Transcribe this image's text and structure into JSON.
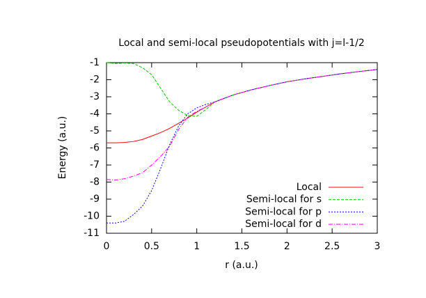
{
  "chart_data": {
    "type": "line",
    "title": "Local and semi-local pseudopotentials with j=l-1/2",
    "x_label": "r (a.u.)",
    "y_label": "Energy (a.u.)",
    "x": [
      0,
      0.1,
      0.2,
      0.3,
      0.4,
      0.5,
      0.6,
      0.7,
      0.8,
      0.9,
      1.0,
      1.1,
      1.2,
      1.4,
      1.6,
      1.8,
      2.0,
      2.2,
      2.4,
      2.6,
      2.8,
      3.0
    ],
    "series": [
      {
        "name": "Local",
        "color": "#ff0000",
        "dash": "none",
        "values": [
          -5.7,
          -5.7,
          -5.68,
          -5.62,
          -5.5,
          -5.3,
          -5.1,
          -4.85,
          -4.55,
          -4.25,
          -3.9,
          -3.6,
          -3.3,
          -2.9,
          -2.6,
          -2.35,
          -2.12,
          -1.95,
          -1.8,
          -1.65,
          -1.52,
          -1.4
        ]
      },
      {
        "name": "Semi-local for s",
        "color": "#00c000",
        "dash": "4 2",
        "values": [
          -1.0,
          -1.05,
          -1.02,
          -1.05,
          -1.3,
          -1.7,
          -2.5,
          -3.3,
          -3.8,
          -4.1,
          -4.15,
          -3.75,
          -3.3,
          -2.9,
          -2.6,
          -2.35,
          -2.12,
          -1.95,
          -1.8,
          -1.65,
          -1.52,
          -1.4
        ]
      },
      {
        "name": "Semi-local for p",
        "color": "#0000ff",
        "dash": "2 2",
        "values": [
          -10.4,
          -10.4,
          -10.3,
          -9.9,
          -9.4,
          -8.5,
          -7.2,
          -5.8,
          -4.7,
          -4.0,
          -3.65,
          -3.45,
          -3.3,
          -2.9,
          -2.6,
          -2.35,
          -2.12,
          -1.95,
          -1.8,
          -1.65,
          -1.52,
          -1.4
        ]
      },
      {
        "name": "Semi-local for d",
        "color": "#ff00ff",
        "dash": "6 2 1 2",
        "values": [
          -7.85,
          -7.88,
          -7.8,
          -7.65,
          -7.45,
          -7.0,
          -6.5,
          -5.9,
          -4.9,
          -4.2,
          -3.85,
          -3.6,
          -3.3,
          -2.9,
          -2.6,
          -2.35,
          -2.12,
          -1.95,
          -1.8,
          -1.65,
          -1.52,
          -1.4
        ]
      }
    ],
    "xlim": [
      0,
      3
    ],
    "xticks": [
      0,
      0.5,
      1,
      1.5,
      2,
      2.5,
      3
    ],
    "ylim": [
      -11,
      -1
    ],
    "yticks": [
      -1,
      -2,
      -3,
      -4,
      -5,
      -6,
      -7,
      -8,
      -9,
      -10,
      -11
    ],
    "legend": "bottom-right"
  }
}
